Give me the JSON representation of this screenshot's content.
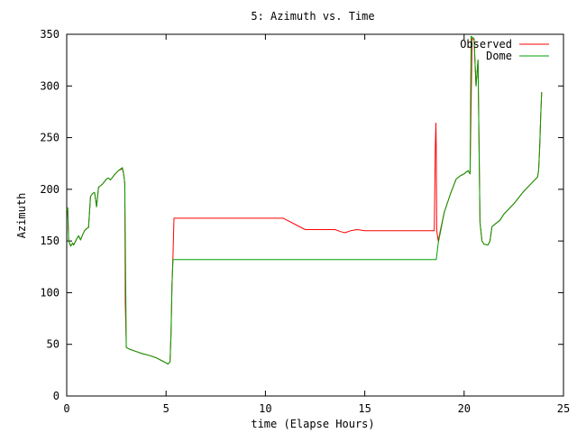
{
  "chart_data": {
    "type": "line",
    "title": "5: Azimuth vs. Time",
    "xlabel": "time (Elapse Hours)",
    "ylabel": "Azimuth",
    "xlim": [
      0,
      25
    ],
    "ylim": [
      0,
      350
    ],
    "xticks": [
      0,
      5,
      10,
      15,
      20,
      25
    ],
    "yticks": [
      0,
      50,
      100,
      150,
      200,
      250,
      300,
      350
    ],
    "grid": false,
    "legend_position": "top-right",
    "series": [
      {
        "name": "Observed",
        "color": "#ff0000",
        "points": [
          [
            0.0,
            180
          ],
          [
            0.05,
            182
          ],
          [
            0.1,
            150
          ],
          [
            0.2,
            145
          ],
          [
            0.3,
            148
          ],
          [
            0.35,
            146
          ],
          [
            0.5,
            152
          ],
          [
            0.6,
            155
          ],
          [
            0.7,
            151
          ],
          [
            0.8,
            156
          ],
          [
            0.9,
            160
          ],
          [
            1.0,
            162
          ],
          [
            1.1,
            163
          ],
          [
            1.2,
            193
          ],
          [
            1.3,
            196
          ],
          [
            1.4,
            197
          ],
          [
            1.5,
            183
          ],
          [
            1.6,
            202
          ],
          [
            1.8,
            205
          ],
          [
            2.0,
            210
          ],
          [
            2.1,
            211
          ],
          [
            2.2,
            209
          ],
          [
            2.4,
            214
          ],
          [
            2.6,
            218
          ],
          [
            2.8,
            220
          ],
          [
            2.85,
            216
          ],
          [
            2.9,
            210
          ],
          [
            2.92,
            205
          ],
          [
            2.95,
            90
          ],
          [
            3.0,
            47
          ],
          [
            3.2,
            45
          ],
          [
            3.5,
            43
          ],
          [
            3.8,
            41
          ],
          [
            4.2,
            39
          ],
          [
            4.5,
            37
          ],
          [
            4.8,
            34
          ],
          [
            5.0,
            32
          ],
          [
            5.1,
            31
          ],
          [
            5.2,
            33
          ],
          [
            5.25,
            60
          ],
          [
            5.3,
            108
          ],
          [
            5.35,
            136
          ],
          [
            5.4,
            172
          ],
          [
            10.9,
            172
          ],
          [
            12.0,
            161
          ],
          [
            13.5,
            161
          ],
          [
            13.8,
            159
          ],
          [
            14.0,
            158
          ],
          [
            14.3,
            160
          ],
          [
            14.6,
            161
          ],
          [
            15.0,
            160
          ],
          [
            16.0,
            160
          ],
          [
            18.0,
            160
          ],
          [
            18.5,
            160
          ],
          [
            18.55,
            238
          ],
          [
            18.58,
            264
          ],
          [
            18.6,
            240
          ],
          [
            18.62,
            160
          ],
          [
            18.7,
            150
          ],
          [
            18.8,
            160
          ],
          [
            19.0,
            178
          ],
          [
            19.3,
            195
          ],
          [
            19.5,
            205
          ],
          [
            19.6,
            210
          ],
          [
            19.8,
            213
          ],
          [
            20.0,
            215
          ],
          [
            20.2,
            218
          ],
          [
            20.3,
            215
          ],
          [
            20.4,
            346
          ],
          [
            20.5,
            345
          ],
          [
            20.6,
            300
          ],
          [
            20.7,
            325
          ],
          [
            20.8,
            168
          ],
          [
            20.9,
            150
          ],
          [
            21.0,
            147
          ],
          [
            21.2,
            146
          ],
          [
            21.3,
            150
          ],
          [
            21.4,
            164
          ],
          [
            21.6,
            167
          ],
          [
            21.8,
            170
          ],
          [
            22.0,
            176
          ],
          [
            22.5,
            186
          ],
          [
            23.0,
            198
          ],
          [
            23.3,
            204
          ],
          [
            23.5,
            208
          ],
          [
            23.7,
            212
          ],
          [
            23.75,
            218
          ],
          [
            23.8,
            240
          ],
          [
            23.85,
            270
          ],
          [
            23.9,
            294
          ]
        ]
      },
      {
        "name": "Dome",
        "color": "#00a000",
        "points": [
          [
            0.0,
            180
          ],
          [
            0.05,
            182
          ],
          [
            0.1,
            150
          ],
          [
            0.2,
            145
          ],
          [
            0.3,
            148
          ],
          [
            0.35,
            146
          ],
          [
            0.5,
            152
          ],
          [
            0.6,
            155
          ],
          [
            0.7,
            151
          ],
          [
            0.8,
            156
          ],
          [
            0.9,
            160
          ],
          [
            1.0,
            162
          ],
          [
            1.1,
            163
          ],
          [
            1.2,
            193
          ],
          [
            1.3,
            196
          ],
          [
            1.4,
            197
          ],
          [
            1.5,
            183
          ],
          [
            1.6,
            202
          ],
          [
            1.8,
            205
          ],
          [
            2.0,
            210
          ],
          [
            2.1,
            211
          ],
          [
            2.2,
            209
          ],
          [
            2.4,
            214
          ],
          [
            2.6,
            218
          ],
          [
            2.8,
            221
          ],
          [
            2.85,
            217
          ],
          [
            2.9,
            210
          ],
          [
            2.92,
            205
          ],
          [
            3.0,
            47
          ],
          [
            3.2,
            45
          ],
          [
            3.5,
            43
          ],
          [
            3.8,
            41
          ],
          [
            4.2,
            39
          ],
          [
            4.5,
            37
          ],
          [
            4.8,
            34
          ],
          [
            5.0,
            32
          ],
          [
            5.1,
            31
          ],
          [
            5.2,
            33
          ],
          [
            5.25,
            60
          ],
          [
            5.3,
            108
          ],
          [
            5.35,
            132
          ],
          [
            18.6,
            132
          ],
          [
            18.7,
            148
          ],
          [
            18.8,
            158
          ],
          [
            19.0,
            178
          ],
          [
            19.3,
            195
          ],
          [
            19.5,
            205
          ],
          [
            19.6,
            210
          ],
          [
            19.8,
            213
          ],
          [
            20.0,
            215
          ],
          [
            20.2,
            218
          ],
          [
            20.3,
            215
          ],
          [
            20.35,
            348
          ],
          [
            20.5,
            346
          ],
          [
            20.6,
            300
          ],
          [
            20.7,
            325
          ],
          [
            20.8,
            168
          ],
          [
            20.9,
            150
          ],
          [
            21.0,
            147
          ],
          [
            21.2,
            146
          ],
          [
            21.3,
            150
          ],
          [
            21.4,
            164
          ],
          [
            21.6,
            167
          ],
          [
            21.8,
            170
          ],
          [
            22.0,
            176
          ],
          [
            22.5,
            186
          ],
          [
            23.0,
            198
          ],
          [
            23.3,
            204
          ],
          [
            23.5,
            208
          ],
          [
            23.7,
            212
          ],
          [
            23.75,
            218
          ],
          [
            23.8,
            240
          ],
          [
            23.85,
            270
          ],
          [
            23.9,
            294
          ]
        ]
      }
    ]
  }
}
